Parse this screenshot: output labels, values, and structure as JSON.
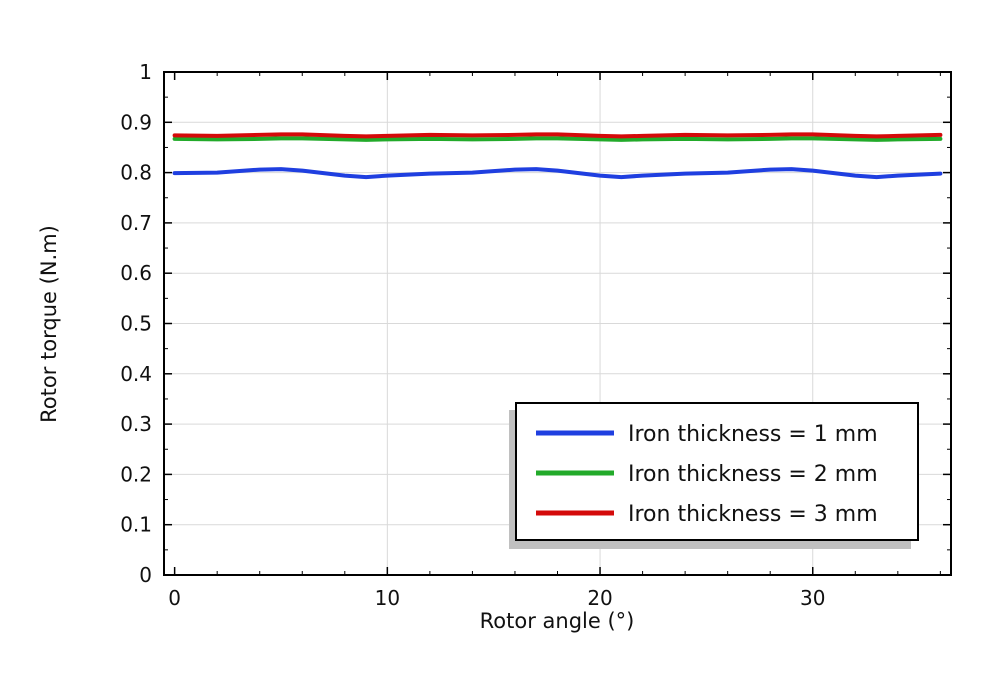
{
  "chart_data": {
    "type": "line",
    "title": "",
    "xlabel": "Rotor angle (°)",
    "ylabel": "Rotor torque (N.m)",
    "xlim": [
      -0.5,
      36.5
    ],
    "ylim": [
      0,
      1
    ],
    "xticks": [
      0,
      10,
      20,
      30
    ],
    "yticks": [
      0,
      0.1,
      0.2,
      0.3,
      0.4,
      0.5,
      0.6,
      0.7,
      0.8,
      0.9,
      1
    ],
    "grid": true,
    "legend_position": "bottom-right",
    "x": [
      0,
      2,
      4,
      5,
      6,
      8,
      9,
      10,
      12,
      14,
      16,
      17,
      18,
      20,
      21,
      22,
      24,
      26,
      28,
      29,
      30,
      32,
      33,
      34,
      36
    ],
    "series": [
      {
        "name": "Iron thickness = 1 mm",
        "color": "#1f3fe0",
        "values": [
          0.799,
          0.8,
          0.806,
          0.807,
          0.804,
          0.794,
          0.791,
          0.794,
          0.798,
          0.8,
          0.806,
          0.807,
          0.804,
          0.794,
          0.791,
          0.794,
          0.798,
          0.8,
          0.806,
          0.807,
          0.804,
          0.794,
          0.791,
          0.794,
          0.798
        ]
      },
      {
        "name": "Iron thickness = 2 mm",
        "color": "#22aa2a",
        "values": [
          0.867,
          0.866,
          0.867,
          0.868,
          0.868,
          0.866,
          0.865,
          0.866,
          0.867,
          0.866,
          0.867,
          0.868,
          0.868,
          0.866,
          0.865,
          0.866,
          0.867,
          0.866,
          0.867,
          0.868,
          0.868,
          0.866,
          0.865,
          0.866,
          0.867
        ]
      },
      {
        "name": "Iron thickness = 3 mm",
        "color": "#d40a0a",
        "values": [
          0.874,
          0.873,
          0.875,
          0.876,
          0.876,
          0.873,
          0.872,
          0.873,
          0.875,
          0.874,
          0.875,
          0.876,
          0.876,
          0.873,
          0.872,
          0.873,
          0.875,
          0.874,
          0.875,
          0.876,
          0.876,
          0.873,
          0.872,
          0.873,
          0.875
        ]
      }
    ],
    "colors": {
      "grid": "#d9d9d9",
      "axis": "#000000",
      "legend_shadow": "#c0c0c0"
    }
  }
}
